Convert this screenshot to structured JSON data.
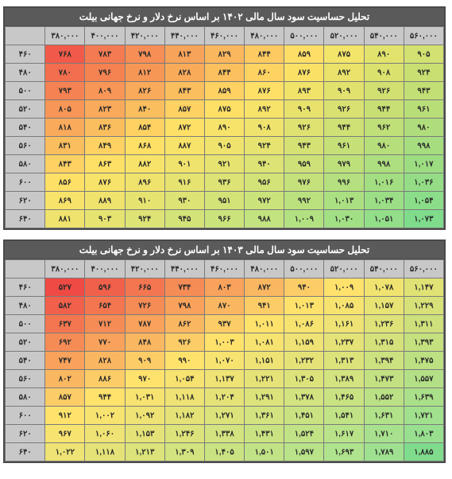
{
  "tables": [
    {
      "title": "تحلیل حساسیت سود سال مالی ۱۴۰۲ بر اساس نرخ دلار  و نرخ جهانی بیلت",
      "col_headers": [
        "۳۸۰,۰۰۰",
        "۴۰۰,۰۰۰",
        "۴۲۰,۰۰۰",
        "۴۴۰,۰۰۰",
        "۴۶۰,۰۰۰",
        "۴۸۰,۰۰۰",
        "۵۰۰,۰۰۰",
        "۵۲۰,۰۰۰",
        "۵۴۰,۰۰۰",
        "۵۶۰,۰۰۰"
      ],
      "row_headers": [
        "۴۶۰",
        "۴۸۰",
        "۵۰۰",
        "۵۲۰",
        "۵۴۰",
        "۵۶۰",
        "۵۸۰",
        "۶۰۰",
        "۶۲۰",
        "۶۴۰"
      ],
      "rows": [
        [
          "۷۶۸",
          "۷۸۳",
          "۷۹۸",
          "۸۱۳",
          "۸۲۹",
          "۸۴۴",
          "۸۵۹",
          "۸۷۵",
          "۸۹۰",
          "۹۰۵"
        ],
        [
          "۷۸۰",
          "۷۹۶",
          "۸۱۲",
          "۸۲۸",
          "۸۴۴",
          "۸۶۰",
          "۸۷۶",
          "۸۹۲",
          "۹۰۸",
          "۹۲۴"
        ],
        [
          "۷۹۳",
          "۸۰۹",
          "۸۲۶",
          "۸۴۳",
          "۸۵۹",
          "۸۷۶",
          "۸۹۳",
          "۹۰۹",
          "۹۲۶",
          "۹۴۳"
        ],
        [
          "۸۰۵",
          "۸۲۳",
          "۸۴۰",
          "۸۵۷",
          "۸۷۵",
          "۸۹۲",
          "۹۰۹",
          "۹۲۶",
          "۹۴۴",
          "۹۶۱"
        ],
        [
          "۸۱۸",
          "۸۳۶",
          "۸۵۴",
          "۸۷۲",
          "۸۹۰",
          "۹۰۸",
          "۹۲۶",
          "۹۴۴",
          "۹۶۲",
          "۹۸۰"
        ],
        [
          "۸۳۱",
          "۸۴۹",
          "۸۶۸",
          "۸۸۷",
          "۹۰۵",
          "۹۲۴",
          "۹۴۳",
          "۹۶۱",
          "۹۸۰",
          "۹۹۸"
        ],
        [
          "۸۴۳",
          "۸۶۳",
          "۸۸۲",
          "۹۰۱",
          "۹۲۱",
          "۹۴۰",
          "۹۵۹",
          "۹۷۹",
          "۹۹۸",
          "۱,۰۱۷"
        ],
        [
          "۸۵۶",
          "۸۷۶",
          "۸۹۶",
          "۹۱۶",
          "۹۳۶",
          "۹۵۶",
          "۹۷۶",
          "۹۹۶",
          "۱,۰۱۶",
          "۱,۰۳۶"
        ],
        [
          "۸۶۹",
          "۸۸۹",
          "۹۱۰",
          "۹۳۰",
          "۹۵۱",
          "۹۷۲",
          "۹۹۲",
          "۱,۰۱۳",
          "۱,۰۳۴",
          "۱,۰۵۴"
        ],
        [
          "۸۸۱",
          "۹۰۳",
          "۹۲۴",
          "۹۴۵",
          "۹۶۶",
          "۹۸۸",
          "۱,۰۰۹",
          "۱,۰۳۰",
          "۱,۰۵۱",
          "۱,۰۷۳"
        ]
      ],
      "colors": [
        [
          "#f15a4a",
          "#f47a52",
          "#f68e56",
          "#f8a35a",
          "#fbb75e",
          "#fdca62",
          "#fede66",
          "#f3e46a",
          "#e2e36d",
          "#d2e171"
        ],
        [
          "#f36e4e",
          "#f58352",
          "#f79756",
          "#f9ab5a",
          "#fcc05e",
          "#fed362",
          "#fae166",
          "#eae26a",
          "#dae16d",
          "#c9df71"
        ],
        [
          "#f58252",
          "#f79656",
          "#f9aa5a",
          "#fbbe5e",
          "#fdd162",
          "#fee066",
          "#f1e36a",
          "#e1e26d",
          "#d1e071",
          "#c1df74"
        ],
        [
          "#f79656",
          "#f9aa5a",
          "#fbbe5e",
          "#fdd162",
          "#fee066",
          "#f8e36a",
          "#e8e26d",
          "#d8e171",
          "#c8df74",
          "#b8de78"
        ],
        [
          "#f9aa5a",
          "#fbbe5e",
          "#fdd162",
          "#fee066",
          "#f8e36a",
          "#efe36d",
          "#dfe271",
          "#cfe074",
          "#bfdf78",
          "#afdd7b"
        ],
        [
          "#fbbe5e",
          "#fdd162",
          "#fee066",
          "#f8e36a",
          "#efe36d",
          "#e6e371",
          "#d6e174",
          "#c6e078",
          "#b6de7b",
          "#a6dd7f"
        ],
        [
          "#fdd162",
          "#fee066",
          "#f8e36a",
          "#efe36d",
          "#e6e371",
          "#dde374",
          "#cde178",
          "#bde07b",
          "#adde7f",
          "#9ddd82"
        ],
        [
          "#fee066",
          "#f8e36a",
          "#efe36d",
          "#e6e371",
          "#dde374",
          "#d4e378",
          "#c4e17b",
          "#b4e07f",
          "#a4de82",
          "#94dd86"
        ],
        [
          "#f8e36a",
          "#efe36d",
          "#e6e371",
          "#dde374",
          "#d4e378",
          "#cbe37b",
          "#bbe17f",
          "#abe082",
          "#9bde86",
          "#8bdd89"
        ],
        [
          "#efe36d",
          "#e6e371",
          "#dde374",
          "#d4e378",
          "#cbe37b",
          "#c2e37f",
          "#b2e182",
          "#a2e086",
          "#92de89",
          "#7fdc8c"
        ]
      ]
    },
    {
      "title": "تحلیل حساسیت سود سال مالی ۱۴۰۳ بر اساس نرخ دلار  و نرخ جهانی بیلت",
      "col_headers": [
        "۳۸۰,۰۰۰",
        "۴۰۰,۰۰۰",
        "۴۲۰,۰۰۰",
        "۴۴۰,۰۰۰",
        "۴۶۰,۰۰۰",
        "۴۸۰,۰۰۰",
        "۵۰۰,۰۰۰",
        "۵۲۰,۰۰۰",
        "۵۴۰,۰۰۰",
        "۵۶۰,۰۰۰"
      ],
      "row_headers": [
        "۴۶۰",
        "۴۸۰",
        "۵۰۰",
        "۵۲۰",
        "۵۴۰",
        "۵۶۰",
        "۵۸۰",
        "۶۰۰",
        "۶۲۰",
        "۶۴۰"
      ],
      "rows": [
        [
          "۵۲۷",
          "۵۹۶",
          "۶۶۵",
          "۷۳۴",
          "۸۰۳",
          "۸۷۲",
          "۹۴۰",
          "۱,۰۰۹",
          "۱,۰۷۸",
          "۱,۱۴۷"
        ],
        [
          "۵۸۲",
          "۶۵۴",
          "۷۲۶",
          "۷۹۸",
          "۸۷۰",
          "۹۴۱",
          "۱,۰۱۳",
          "۱,۰۸۵",
          "۱,۱۵۷",
          "۱,۲۲۹"
        ],
        [
          "۶۳۷",
          "۷۱۲",
          "۷۸۷",
          "۸۶۲",
          "۹۳۷",
          "۱,۰۱۱",
          "۱,۰۸۶",
          "۱,۱۶۱",
          "۱,۲۳۶",
          "۱,۳۱۱"
        ],
        [
          "۶۹۲",
          "۷۷۰",
          "۸۴۸",
          "۹۲۶",
          "۱,۰۰۳",
          "۱,۰۸۱",
          "۱,۱۵۹",
          "۱,۲۳۷",
          "۱,۳۱۵",
          "۱,۳۹۳"
        ],
        [
          "۷۴۷",
          "۸۲۸",
          "۹۰۹",
          "۹۹۰",
          "۱,۰۷۰",
          "۱,۱۵۱",
          "۱,۲۳۲",
          "۱,۳۱۳",
          "۱,۳۹۴",
          "۱,۴۷۵"
        ],
        [
          "۸۰۲",
          "۸۸۶",
          "۹۷۰",
          "۱,۰۵۴",
          "۱,۱۳۷",
          "۱,۲۲۱",
          "۱,۳۰۵",
          "۱,۳۸۹",
          "۱,۴۷۳",
          "۱,۵۵۷"
        ],
        [
          "۸۵۷",
          "۹۴۴",
          "۱,۰۳۱",
          "۱,۱۱۸",
          "۱,۲۰۴",
          "۱,۲۹۱",
          "۱,۳۷۸",
          "۱,۴۶۵",
          "۱,۵۵۲",
          "۱,۶۳۹"
        ],
        [
          "۹۱۲",
          "۱,۰۰۲",
          "۱,۰۹۲",
          "۱,۱۸۲",
          "۱,۲۷۱",
          "۱,۳۶۱",
          "۱,۴۵۱",
          "۱,۵۴۱",
          "۱,۶۳۱",
          "۱,۷۲۱"
        ],
        [
          "۹۶۷",
          "۱,۰۶۰",
          "۱,۱۵۳",
          "۱,۲۴۶",
          "۱,۳۳۸",
          "۱,۴۳۱",
          "۱,۵۲۴",
          "۱,۶۱۷",
          "۱,۷۱۰",
          "۱,۸۰۳"
        ],
        [
          "۱,۰۲۲",
          "۱,۱۱۸",
          "۱,۲۱۳",
          "۱,۳۰۹",
          "۱,۴۰۵",
          "۱,۵۰۱",
          "۱,۵۹۷",
          "۱,۶۹۳",
          "۱,۷۸۹",
          "۱,۸۸۵"
        ]
      ],
      "colors": [
        [
          "#ef4a44",
          "#f1604a",
          "#f37650",
          "#f58c56",
          "#f8a25b",
          "#fab761",
          "#fccd67",
          "#fee26c",
          "#f0e370",
          "#e0e274"
        ],
        [
          "#f1604a",
          "#f37650",
          "#f58c56",
          "#f8a25b",
          "#fab761",
          "#fccd67",
          "#fee26c",
          "#f7e370",
          "#e7e374",
          "#d7e178"
        ],
        [
          "#f37650",
          "#f58c56",
          "#f8a25b",
          "#fab761",
          "#fccd67",
          "#fee26c",
          "#f7e370",
          "#eee374",
          "#dee278",
          "#cee07b"
        ],
        [
          "#f58c56",
          "#f8a25b",
          "#fab761",
          "#fccd67",
          "#fee26c",
          "#f7e370",
          "#eee374",
          "#e5e378",
          "#d5e17b",
          "#c5e07f"
        ],
        [
          "#f8a25b",
          "#fab761",
          "#fccd67",
          "#fee26c",
          "#f7e370",
          "#eee374",
          "#e5e378",
          "#dce37b",
          "#cce17f",
          "#bce082"
        ],
        [
          "#fab761",
          "#fccd67",
          "#fee26c",
          "#f7e370",
          "#eee374",
          "#e5e378",
          "#dce37b",
          "#d3e37f",
          "#c3e182",
          "#b3e086"
        ],
        [
          "#fccd67",
          "#fee26c",
          "#f7e370",
          "#eee374",
          "#e5e378",
          "#dce37b",
          "#d3e37f",
          "#cae382",
          "#bae186",
          "#aae089"
        ],
        [
          "#fee26c",
          "#f7e370",
          "#eee374",
          "#e5e378",
          "#dce37b",
          "#d3e37f",
          "#cae382",
          "#c1e386",
          "#b1e189",
          "#a1e08d"
        ],
        [
          "#f7e370",
          "#eee374",
          "#e5e378",
          "#dce37b",
          "#d3e37f",
          "#cae382",
          "#c1e386",
          "#b8e389",
          "#a8e18d",
          "#98e090"
        ],
        [
          "#eee374",
          "#e5e378",
          "#dce37b",
          "#d3e37f",
          "#cae382",
          "#c1e386",
          "#b8e389",
          "#afe38d",
          "#9fe190",
          "#7fdc8c"
        ]
      ]
    }
  ]
}
